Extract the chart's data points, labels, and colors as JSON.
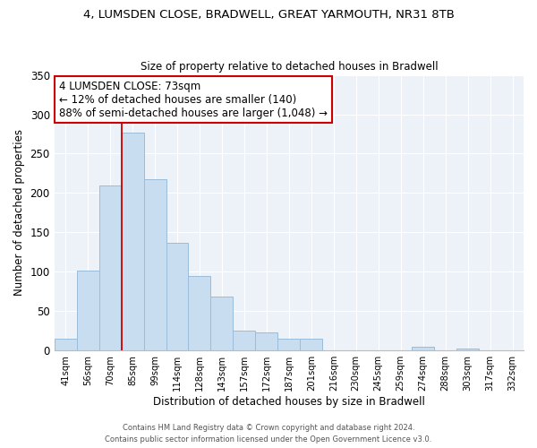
{
  "title1": "4, LUMSDEN CLOSE, BRADWELL, GREAT YARMOUTH, NR31 8TB",
  "title2": "Size of property relative to detached houses in Bradwell",
  "xlabel": "Distribution of detached houses by size in Bradwell",
  "ylabel": "Number of detached properties",
  "bar_labels": [
    "41sqm",
    "56sqm",
    "70sqm",
    "85sqm",
    "99sqm",
    "114sqm",
    "128sqm",
    "143sqm",
    "157sqm",
    "172sqm",
    "187sqm",
    "201sqm",
    "216sqm",
    "230sqm",
    "245sqm",
    "259sqm",
    "274sqm",
    "288sqm",
    "303sqm",
    "317sqm",
    "332sqm"
  ],
  "bar_values": [
    15,
    102,
    210,
    277,
    218,
    137,
    95,
    68,
    25,
    23,
    15,
    15,
    0,
    0,
    0,
    0,
    5,
    0,
    3,
    0,
    0
  ],
  "bar_color": "#c8ddf0",
  "bar_edge_color": "#9bbcda",
  "vline_x_idx": 2,
  "vline_color": "#cc0000",
  "annotation_text": "4 LUMSDEN CLOSE: 73sqm\n← 12% of detached houses are smaller (140)\n88% of semi-detached houses are larger (1,048) →",
  "annotation_box_color": "#ffffff",
  "annotation_box_edge": "#cc0000",
  "ylim": [
    0,
    350
  ],
  "yticks": [
    0,
    50,
    100,
    150,
    200,
    250,
    300,
    350
  ],
  "footer1": "Contains HM Land Registry data © Crown copyright and database right 2024.",
  "footer2": "Contains public sector information licensed under the Open Government Licence v3.0.",
  "bg_color": "#edf2f8",
  "grid_color": "#ffffff",
  "title1_fontsize": 9.5,
  "title2_fontsize": 8.5
}
